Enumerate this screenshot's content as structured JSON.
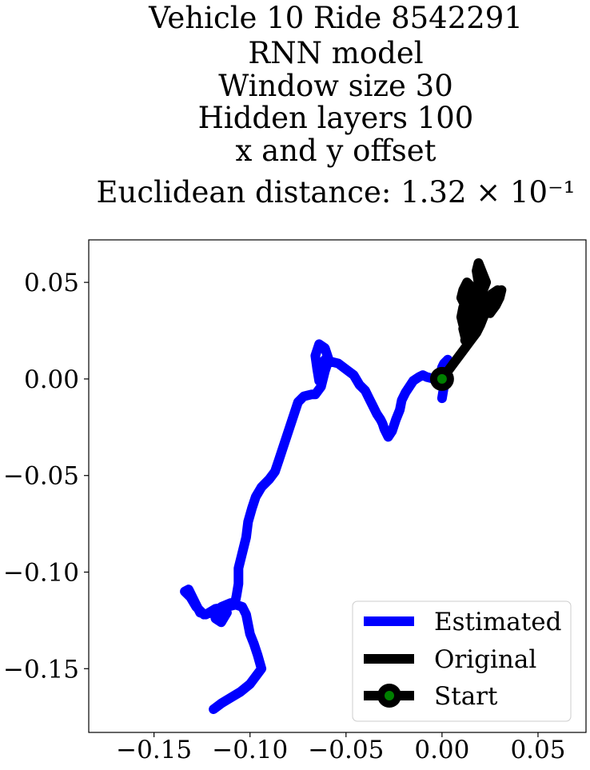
{
  "chart_data": {
    "type": "line",
    "title_lines": [
      "Vehicle 10 Ride 8542291",
      "RNN model",
      "Window size 30",
      "Hidden layers 100",
      "x and y offset",
      "Euclidean distance: 1.32 × 10⁻¹"
    ],
    "xlabel": "",
    "ylabel": "",
    "xlim": [
      -0.184,
      0.075
    ],
    "ylim": [
      -0.183,
      0.072
    ],
    "xticks": [
      -0.15,
      -0.1,
      -0.05,
      0.0,
      0.05
    ],
    "xtick_labels": [
      "−0.15",
      "−0.10",
      "−0.05",
      "0.00",
      "0.05"
    ],
    "yticks": [
      0.05,
      0.0,
      -0.05,
      -0.1,
      -0.15
    ],
    "ytick_labels": [
      "0.05",
      "0.00",
      "−0.05",
      "−0.10",
      "−0.15"
    ],
    "grid": false,
    "legend_position": "lower-right",
    "series": [
      {
        "name": "Estimated",
        "color": "#0000ff",
        "x": [
          -0.119,
          -0.115,
          -0.11,
          -0.105,
          -0.1,
          -0.097,
          -0.094,
          -0.096,
          -0.098,
          -0.1,
          -0.101,
          -0.102,
          -0.104,
          -0.107,
          -0.11,
          -0.115,
          -0.118,
          -0.115,
          -0.112,
          -0.116,
          -0.12,
          -0.124,
          -0.128,
          -0.131,
          -0.134,
          -0.132,
          -0.13,
          -0.128,
          -0.126,
          -0.123,
          -0.118,
          -0.112,
          -0.108,
          -0.107,
          -0.106,
          -0.106,
          -0.104,
          -0.102,
          -0.101,
          -0.099,
          -0.097,
          -0.094,
          -0.09,
          -0.087,
          -0.085,
          -0.083,
          -0.081,
          -0.079,
          -0.077,
          -0.075,
          -0.072,
          -0.068,
          -0.066,
          -0.063,
          -0.061,
          -0.059,
          -0.061,
          -0.064,
          -0.066,
          -0.065,
          -0.064,
          -0.063,
          -0.061,
          -0.058,
          -0.054,
          -0.05,
          -0.046,
          -0.043,
          -0.04,
          -0.038,
          -0.036,
          -0.034,
          -0.032,
          -0.031,
          -0.03,
          -0.028,
          -0.026,
          -0.024,
          -0.022,
          -0.021,
          -0.019,
          -0.017,
          -0.015,
          -0.012,
          -0.01,
          -0.008,
          -0.004,
          -0.002,
          -0.001,
          0.0,
          0.001,
          0.003,
          0.002,
          0.001,
          0.0
        ],
        "y": [
          -0.171,
          -0.168,
          -0.165,
          -0.162,
          -0.158,
          -0.154,
          -0.15,
          -0.143,
          -0.137,
          -0.132,
          -0.127,
          -0.122,
          -0.118,
          -0.117,
          -0.116,
          -0.118,
          -0.124,
          -0.126,
          -0.121,
          -0.12,
          -0.121,
          -0.122,
          -0.118,
          -0.113,
          -0.11,
          -0.109,
          -0.113,
          -0.117,
          -0.121,
          -0.122,
          -0.119,
          -0.118,
          -0.117,
          -0.112,
          -0.106,
          -0.098,
          -0.09,
          -0.082,
          -0.074,
          -0.067,
          -0.061,
          -0.056,
          -0.052,
          -0.048,
          -0.042,
          -0.036,
          -0.03,
          -0.024,
          -0.018,
          -0.012,
          -0.009,
          -0.008,
          -0.008,
          -0.004,
          0.004,
          0.01,
          0.016,
          0.018,
          0.012,
          0.005,
          -0.001,
          0.006,
          0.01,
          0.009,
          0.008,
          0.005,
          0.002,
          -0.003,
          -0.006,
          -0.01,
          -0.014,
          -0.018,
          -0.021,
          -0.023,
          -0.026,
          -0.03,
          -0.027,
          -0.021,
          -0.016,
          -0.011,
          -0.007,
          -0.004,
          -0.001,
          0.001,
          0.002,
          0.001,
          0.0,
          -0.001,
          0.002,
          0.006,
          0.008,
          0.01,
          0.004,
          -0.004,
          -0.01
        ]
      },
      {
        "name": "Original",
        "color": "#000000",
        "x": [
          0.0,
          0.003,
          0.006,
          0.009,
          0.012,
          0.015,
          0.018,
          0.02,
          0.022,
          0.021,
          0.019,
          0.016,
          0.013,
          0.011,
          0.01,
          0.012,
          0.014,
          0.013,
          0.011,
          0.012,
          0.015,
          0.018,
          0.021,
          0.024,
          0.027,
          0.029,
          0.031,
          0.03,
          0.027,
          0.024,
          0.022,
          0.02,
          0.019,
          0.018,
          0.019,
          0.021,
          0.023,
          0.021,
          0.018,
          0.015,
          0.013,
          0.011,
          0.01,
          0.011,
          0.013,
          0.016,
          0.019,
          0.022,
          0.025,
          0.028,
          0.03,
          0.029,
          0.026,
          0.023,
          0.02,
          0.017,
          0.015,
          0.013,
          0.012,
          0.013,
          0.015,
          0.017,
          0.019,
          0.021,
          0.022
        ],
        "y": [
          0.0,
          0.004,
          0.008,
          0.012,
          0.016,
          0.02,
          0.024,
          0.028,
          0.033,
          0.038,
          0.043,
          0.047,
          0.05,
          0.046,
          0.042,
          0.038,
          0.034,
          0.03,
          0.026,
          0.022,
          0.024,
          0.028,
          0.032,
          0.036,
          0.04,
          0.043,
          0.046,
          0.042,
          0.038,
          0.035,
          0.039,
          0.044,
          0.05,
          0.056,
          0.06,
          0.055,
          0.05,
          0.045,
          0.04,
          0.035,
          0.031,
          0.028,
          0.032,
          0.037,
          0.041,
          0.045,
          0.041,
          0.037,
          0.034,
          0.038,
          0.042,
          0.046,
          0.044,
          0.04,
          0.036,
          0.032,
          0.028,
          0.024,
          0.02,
          0.023,
          0.027,
          0.031,
          0.035,
          0.039,
          0.043
        ]
      }
    ],
    "start_point": {
      "x": 0.0,
      "y": 0.0,
      "outer_color": "#000000",
      "inner_color": "#008000"
    },
    "legend": [
      {
        "label": "Estimated",
        "color": "#0000ff",
        "marker": "none"
      },
      {
        "label": "Original",
        "color": "#000000",
        "marker": "none"
      },
      {
        "label": "Start",
        "color": "#000000",
        "marker": "circle",
        "marker_color": "#008000"
      }
    ]
  }
}
